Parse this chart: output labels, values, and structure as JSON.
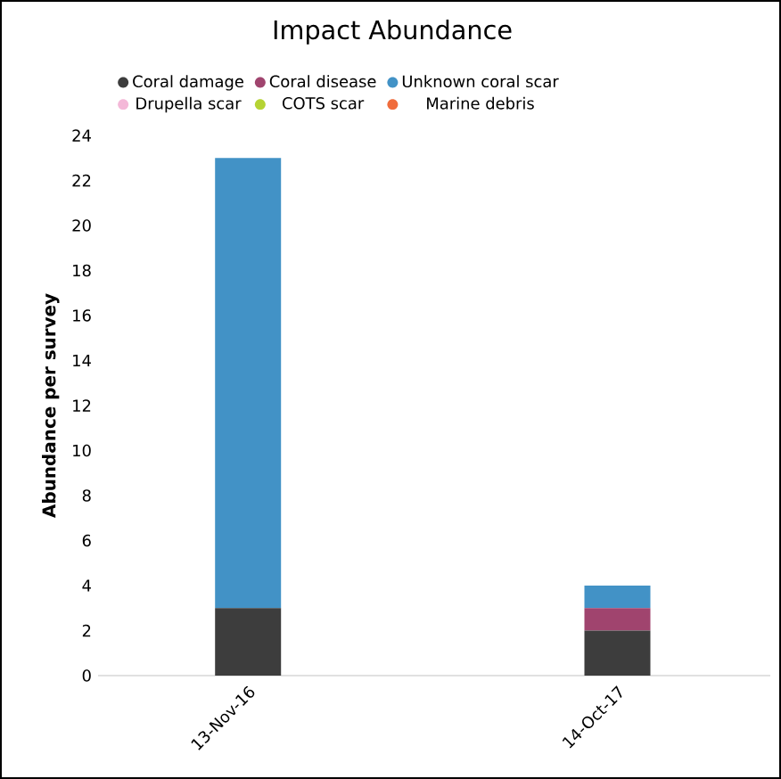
{
  "chart_data": {
    "type": "bar",
    "title": "Impact Abundance",
    "ylabel": "Abundance per survey",
    "stacked": true,
    "legend": "top",
    "categories": [
      "13-Nov-16",
      "14-Oct-17"
    ],
    "series": [
      {
        "name": "Coral damage",
        "color": "#3d3d3d",
        "values": [
          3,
          2
        ]
      },
      {
        "name": "Coral disease",
        "color": "#a0446e",
        "values": [
          0,
          1
        ]
      },
      {
        "name": "Unknown coral scar",
        "color": "#4292c6",
        "values": [
          20,
          1
        ]
      },
      {
        "name": "Drupella scar",
        "color": "#f4b8d8",
        "values": [
          0,
          0
        ]
      },
      {
        "name": "COTS scar",
        "color": "#b5d334",
        "values": [
          0,
          0
        ]
      },
      {
        "name": "Marine debris",
        "color": "#f06c3c",
        "values": [
          0,
          0
        ]
      }
    ],
    "ylim": [
      0,
      24
    ],
    "yticks": [
      0,
      2,
      4,
      6,
      8,
      10,
      12,
      14,
      16,
      18,
      20,
      22,
      24
    ]
  }
}
